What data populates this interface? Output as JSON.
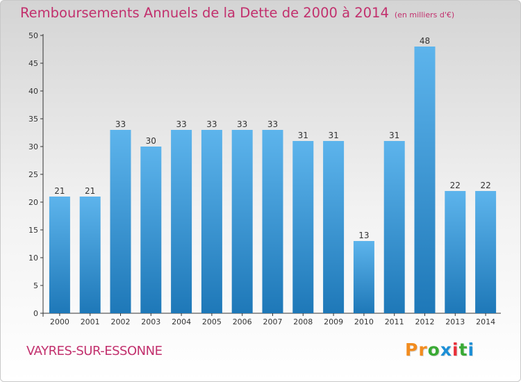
{
  "header": {
    "title": "Remboursements Annuels de la Dette de 2000 à 2014",
    "subtitle": "(en milliers d'€)"
  },
  "footer": {
    "city": "VAYRES-SUR-ESSONNE",
    "logo_letters": [
      "P",
      "r",
      "o",
      "x",
      "i",
      "t",
      "i"
    ]
  },
  "colors": {
    "title": "#c2306d",
    "bar_top": "#5db4ec",
    "bar_bottom": "#1e78b8",
    "logo": [
      "#f28c1f",
      "#f28c1f",
      "#3aaa35",
      "#1d8fd6",
      "#e8303a",
      "#3aaa35",
      "#1d8fd6"
    ]
  },
  "chart_data": {
    "type": "bar",
    "title": "Remboursements Annuels de la Dette de 2000 à 2014",
    "subtitle": "(en milliers d'€)",
    "categories": [
      "2000",
      "2001",
      "2002",
      "2003",
      "2004",
      "2005",
      "2006",
      "2007",
      "2008",
      "2009",
      "2010",
      "2011",
      "2012",
      "2013",
      "2014"
    ],
    "values": [
      21,
      21,
      33,
      30,
      33,
      33,
      33,
      33,
      31,
      31,
      13,
      31,
      48,
      22,
      22
    ],
    "xlabel": "",
    "ylabel": "",
    "ylim": [
      0,
      50
    ],
    "yticks": [
      0,
      5,
      10,
      15,
      20,
      25,
      30,
      35,
      40,
      45,
      50
    ],
    "grid": false,
    "legend": "none"
  }
}
